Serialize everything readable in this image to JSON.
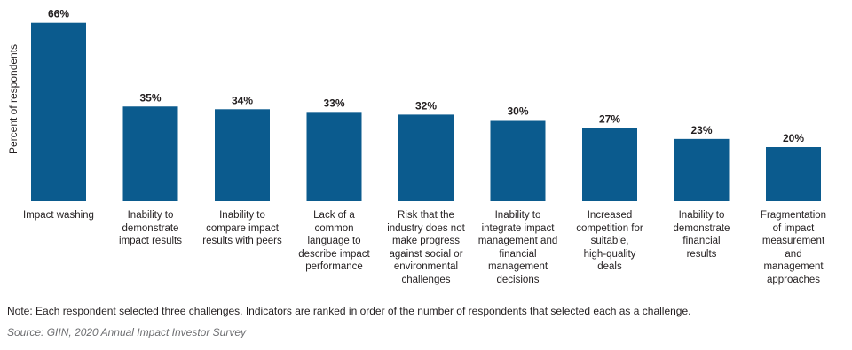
{
  "chart_data": {
    "type": "bar",
    "y_label": "Percent of respondents",
    "categories": [
      "Impact washing",
      "Inability to\ndemonstrate\nimpact results",
      "Inability to\ncompare impact\nresults with peers",
      "Lack of a\ncommon\nlanguage to\ndescribe impact\nperformance",
      "Risk that the\nindustry does not\nmake progress\nagainst social or\nenvironmental\nchallenges",
      "Inability to\nintegrate impact\nmanagement and\nfinancial\nmanagement\ndecisions",
      "Increased\ncompetition for\nsuitable,\nhigh-quality\ndeals",
      "Inability to\ndemonstrate\nfinancial\nresults",
      "Fragmentation\nof impact\nmeasurement\nand\nmanagement\napproaches"
    ],
    "values": [
      66,
      35,
      34,
      33,
      32,
      30,
      27,
      23,
      20
    ],
    "value_labels": [
      "66%",
      "35%",
      "34%",
      "33%",
      "32%",
      "30%",
      "27%",
      "23%",
      "20%"
    ],
    "color": "#0b5b8e",
    "note": "Note: Each respondent selected three challenges. Indicators are ranked in order of the number of respondents that selected each as a challenge.",
    "source": "Source: GIIN, 2020 Annual Impact Investor Survey"
  }
}
